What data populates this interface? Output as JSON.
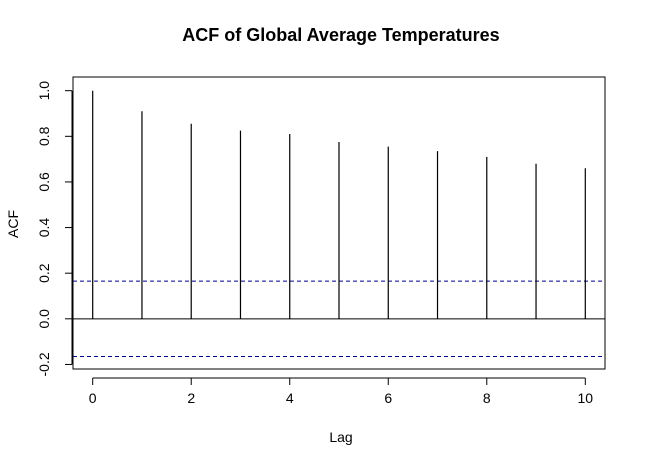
{
  "chart_data": {
    "type": "bar",
    "title": "ACF of Global Average Temperatures",
    "xlabel": "Lag",
    "ylabel": "ACF",
    "x": [
      0,
      1,
      2,
      3,
      4,
      5,
      6,
      7,
      8,
      9,
      10
    ],
    "values": [
      1.0,
      0.91,
      0.855,
      0.825,
      0.81,
      0.775,
      0.755,
      0.735,
      0.71,
      0.68,
      0.66
    ],
    "xticks": [
      0,
      2,
      4,
      6,
      8,
      10
    ],
    "xtick_labels": [
      "0",
      "2",
      "4",
      "6",
      "8",
      "10"
    ],
    "yticks": [
      -0.2,
      0.0,
      0.2,
      0.4,
      0.6,
      0.8,
      1.0
    ],
    "ytick_labels": [
      "-0.2",
      "0.0",
      "0.2",
      "0.4",
      "0.6",
      "0.8",
      "1.0"
    ],
    "xlim": [
      -0.4,
      10.4
    ],
    "ylim": [
      -0.22,
      1.06
    ],
    "confidence_bound": 0.165,
    "confidence_color": "#00008b",
    "bar_color": "#000000",
    "grid": false,
    "legend": "none"
  }
}
